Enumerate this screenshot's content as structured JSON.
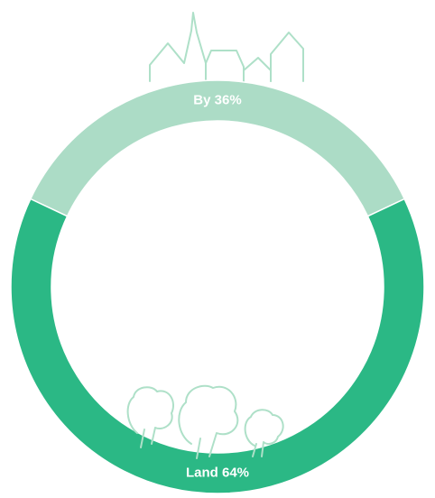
{
  "chart_data": {
    "type": "donut",
    "categories": [
      "By",
      "Land"
    ],
    "values": [
      36,
      64
    ],
    "value_labels": [
      "36%",
      "64%"
    ],
    "colors": [
      "#acdcc6",
      "#2bb885"
    ]
  }
}
